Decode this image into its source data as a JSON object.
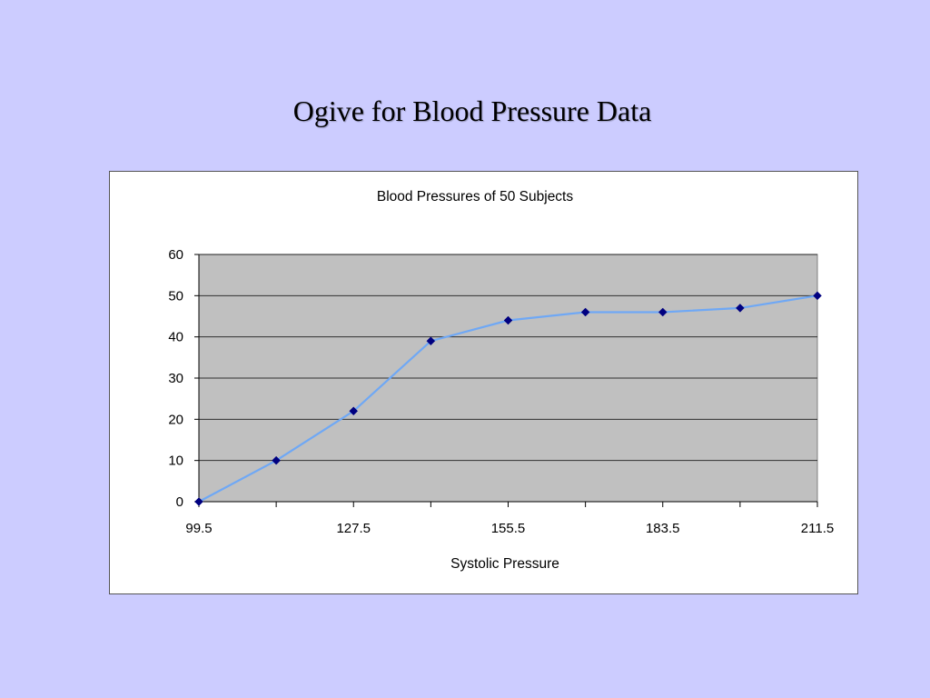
{
  "slide": {
    "title": "Ogive for Blood Pressure Data"
  },
  "chart_data": {
    "type": "line",
    "title": "Blood Pressures of 50 Subjects",
    "xlabel": "Systolic Pressure",
    "ylabel": "",
    "x": [
      99.5,
      113.5,
      127.5,
      141.5,
      155.5,
      169.5,
      183.5,
      197.5,
      211.5
    ],
    "series": [
      {
        "values": [
          0,
          10,
          22,
          39,
          44,
          46,
          46,
          47,
          50
        ]
      }
    ],
    "x_tick_labels": [
      "99.5",
      "127.5",
      "155.5",
      "183.5",
      "211.5"
    ],
    "y_ticks": [
      0,
      10,
      20,
      30,
      40,
      50,
      60
    ],
    "xlim": [
      99.5,
      211.5
    ],
    "ylim": [
      0,
      60
    ],
    "grid": "horizontal",
    "legend": "none",
    "colors": {
      "line": "#6fa8f5",
      "marker": "#000080",
      "plot_area": "#c0c0c0",
      "gridline": "#000000",
      "background": "#ccccff"
    }
  }
}
